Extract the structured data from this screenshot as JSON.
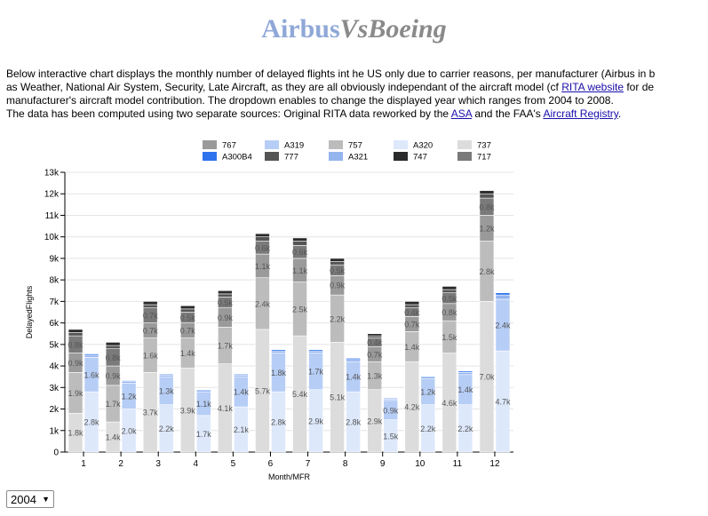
{
  "page": {
    "title_part1": "Airbus",
    "title_part2": "VsBoeing",
    "intro_line1": "Below interactive chart displays the monthly number of delayed flights int he US only due to carrier reasons, per manufacturer (Airbus in b",
    "intro_line2_pre": "as Weather, National Air System, Security, Late Aircraft, as they are all obviously independant of the aircraft model (cf ",
    "intro_line2_link": "RITA website",
    "intro_line2_post": " for de",
    "intro_line3": "manufacturer's aircraft model contribution. The dropdown enables to change the displayed year which ranges from 2004 to 2008.",
    "intro_line4_pre": "The data has been computed using two separate sources: Original RITA data reworked by the ",
    "intro_line4_link1": "ASA",
    "intro_line4_mid": " and the FAA's ",
    "intro_line4_link2": "Aircraft Registry",
    "intro_line4_post": "."
  },
  "year_select": {
    "selected": "2004",
    "arrow": "▼"
  },
  "chart_data": {
    "type": "bar",
    "stacked": true,
    "grouped": true,
    "groups": [
      "Boeing",
      "Airbus"
    ],
    "categories": [
      "1",
      "2",
      "3",
      "4",
      "5",
      "6",
      "7",
      "8",
      "9",
      "10",
      "11",
      "12"
    ],
    "xlabel": "Month/MFR",
    "ylabel": "DelayedFlights",
    "ylim": [
      0,
      13000
    ],
    "yticks": [
      "0",
      "1k",
      "2k",
      "3k",
      "4k",
      "5k",
      "6k",
      "7k",
      "8k",
      "9k",
      "10k",
      "11k",
      "12k",
      "13k"
    ],
    "grid": true,
    "legend_position": "top",
    "legend_order": [
      "767",
      "A319",
      "757",
      "A320",
      "737",
      "A300B4",
      "777",
      "A321",
      "747",
      "717"
    ],
    "series": [
      {
        "name": "737",
        "group": "Boeing",
        "color": "#dcdcdc",
        "values": [
          1800,
          1400,
          3700,
          3900,
          4100,
          5700,
          5400,
          5100,
          2900,
          4200,
          4600,
          7000
        ],
        "labels": [
          "1.8k",
          "1.4k",
          "3.7k",
          "3.9k",
          "4.1k",
          "5.7k",
          "5.4k",
          "5.1k",
          "2.9k",
          "4.2k",
          "4.6k",
          "7.0k"
        ]
      },
      {
        "name": "757",
        "group": "Boeing",
        "color": "#bcbcbc",
        "values": [
          1900,
          1700,
          1600,
          1400,
          1700,
          2400,
          2500,
          2200,
          1300,
          1400,
          1500,
          2800
        ],
        "labels": [
          "1.9k",
          "1.7k",
          "1.6k",
          "1.4k",
          "1.7k",
          "2.4k",
          "2.5k",
          "2.2k",
          "1.3k",
          "1.4k",
          "1.5k",
          "2.8k"
        ]
      },
      {
        "name": "767",
        "group": "Boeing",
        "color": "#9a9a9a",
        "values": [
          900,
          900,
          700,
          700,
          900,
          1100,
          1100,
          900,
          700,
          700,
          800,
          1200
        ],
        "labels": [
          "0.9k",
          "0.9k",
          "0.7k",
          "0.7k",
          "0.9k",
          "1.1k",
          "1.1k",
          "0.9k",
          "0.7k",
          "0.7k",
          "0.8k",
          "1.2k"
        ]
      },
      {
        "name": "717",
        "group": "Boeing",
        "color": "#7a7a7a",
        "values": [
          800,
          800,
          700,
          500,
          500,
          600,
          600,
          500,
          400,
          400,
          500,
          800
        ],
        "labels": [
          "0.8k",
          "0.8k",
          "0.7k",
          "0.5k",
          "0.5k",
          "0.6k",
          "0.6k",
          "0.5k",
          "0.4k",
          "0.4k",
          "0.5k",
          "0.8k"
        ]
      },
      {
        "name": "777",
        "group": "Boeing",
        "color": "#555555",
        "values": [
          150,
          150,
          150,
          150,
          150,
          200,
          200,
          150,
          100,
          150,
          150,
          200
        ],
        "labels": [
          "",
          "",
          "",
          "",
          "",
          "",
          "",
          "",
          "",
          "",
          "",
          ""
        ]
      },
      {
        "name": "747",
        "group": "Boeing",
        "color": "#2b2b2b",
        "values": [
          150,
          150,
          150,
          150,
          150,
          150,
          150,
          150,
          100,
          150,
          150,
          150
        ],
        "labels": [
          "",
          "",
          "",
          "",
          "",
          "",
          "",
          "",
          "",
          "",
          "",
          ""
        ]
      },
      {
        "name": "A320",
        "group": "Airbus",
        "color": "#dde8fb",
        "values": [
          2800,
          2000,
          2200,
          1700,
          2100,
          2800,
          2900,
          2800,
          1500,
          2200,
          2200,
          4700
        ],
        "labels": [
          "2.8k",
          "2.0k",
          "2.2k",
          "1.7k",
          "2.1k",
          "2.8k",
          "2.9k",
          "2.8k",
          "1.5k",
          "2.2k",
          "2.2k",
          "4.7k"
        ]
      },
      {
        "name": "A319",
        "group": "Airbus",
        "color": "#b6cdf6",
        "values": [
          1600,
          1200,
          1300,
          1100,
          1400,
          1800,
          1700,
          1400,
          900,
          1200,
          1400,
          2400
        ],
        "labels": [
          "1.6k",
          "1.2k",
          "1.3k",
          "1.1k",
          "1.4k",
          "1.8k",
          "1.7k",
          "1.4k",
          "0.9k",
          "1.2k",
          "1.4k",
          "2.4k"
        ]
      },
      {
        "name": "A321",
        "group": "Airbus",
        "color": "#94b4ee",
        "values": [
          100,
          80,
          80,
          60,
          80,
          100,
          100,
          100,
          60,
          80,
          100,
          200
        ],
        "labels": [
          "",
          "",
          "",
          "",
          "",
          "",
          "",
          "",
          "",
          "",
          "",
          ""
        ]
      },
      {
        "name": "A300B4",
        "group": "Airbus",
        "color": "#2e72ee",
        "values": [
          60,
          40,
          40,
          40,
          40,
          60,
          60,
          60,
          40,
          40,
          60,
          100
        ],
        "labels": [
          "",
          "",
          "",
          "",
          "",
          "",
          "",
          "",
          "",
          "",
          "",
          ""
        ]
      }
    ]
  }
}
